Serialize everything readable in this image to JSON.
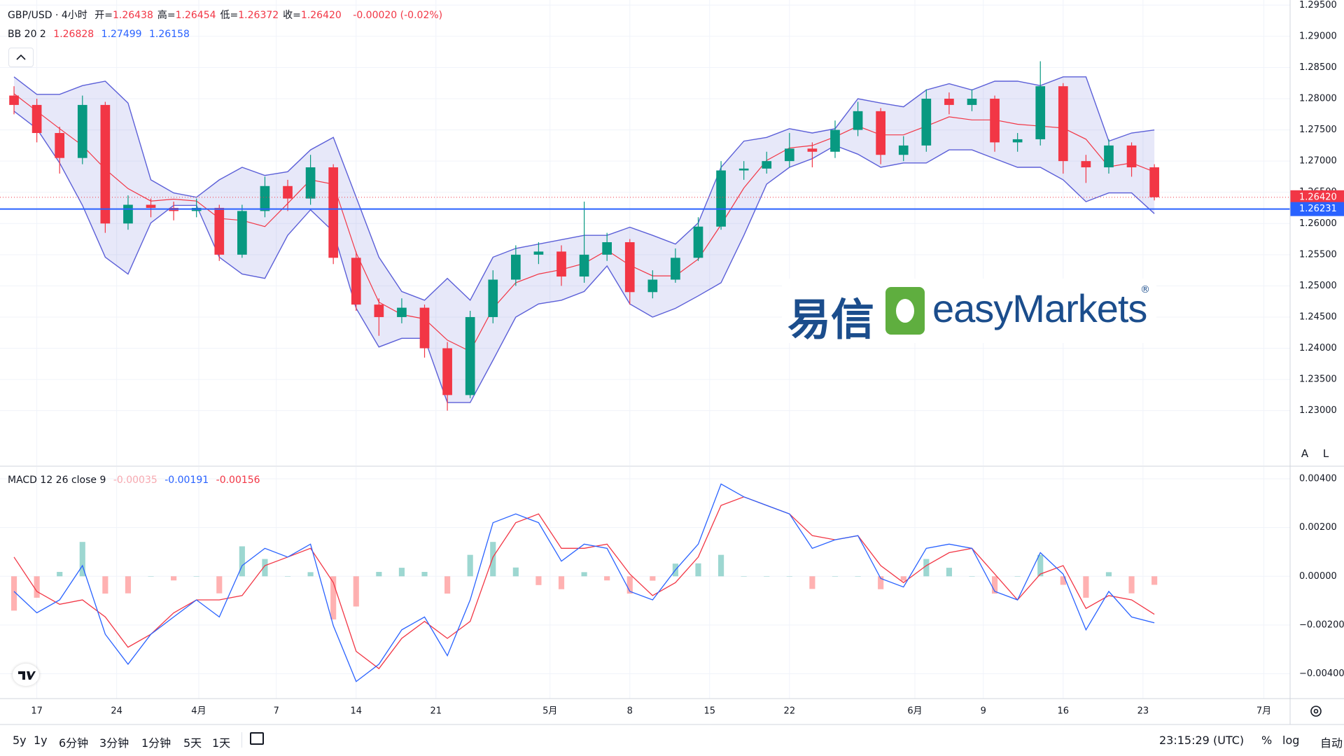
{
  "header": {
    "symbol": "GBP/USD · 4小时",
    "ohlc": [
      {
        "k": "开=",
        "v": "1.26438"
      },
      {
        "k": "高=",
        "v": "1.26454"
      },
      {
        "k": "低=",
        "v": "1.26372"
      },
      {
        "k": "收=",
        "v": "1.26420"
      }
    ],
    "change": "-0.00020 (-0.02%)",
    "bb_label": "BB 20 2",
    "bb_values": [
      "1.26828",
      "1.27499",
      "1.26158"
    ],
    "macd_label": "MACD 12 26 close 9",
    "macd_values": [
      "-0.00035",
      "-0.00191",
      "-0.00156"
    ]
  },
  "watermark": {
    "cn": "易信",
    "en": "easyMarkets",
    "reg": "®"
  },
  "scale_buttons": [
    "A",
    "L"
  ],
  "toolbar": {
    "ranges": [
      "5y",
      "1y",
      "6分钟",
      "3分钟",
      "1分钟",
      "5天",
      "1天"
    ],
    "clock": "23:15:29 (UTC)",
    "options": [
      "%",
      "log",
      "自动"
    ]
  },
  "chart_data": [
    {
      "type": "candlestick",
      "xlim": [
        -3.23,
        109.9
      ],
      "ylim": [
        1.22121,
        1.29582
      ],
      "xticks": [
        {
          "value": 0,
          "label": "17"
        },
        {
          "value": 7,
          "label": "24"
        },
        {
          "value": 14.2,
          "label": "4月"
        },
        {
          "value": 21,
          "label": "7"
        },
        {
          "value": 28,
          "label": "14"
        },
        {
          "value": 35,
          "label": "21"
        },
        {
          "value": 45,
          "label": "5月"
        },
        {
          "value": 52,
          "label": "8"
        },
        {
          "value": 59,
          "label": "15"
        },
        {
          "value": 66,
          "label": "22"
        },
        {
          "value": 77,
          "label": "6月"
        },
        {
          "value": 83,
          "label": "9"
        },
        {
          "value": 90,
          "label": "16"
        },
        {
          "value": 97,
          "label": "23"
        },
        {
          "value": 107.6,
          "label": "7月"
        }
      ],
      "yticks": [
        {
          "value": 1.23,
          "label": "1.23000"
        },
        {
          "value": 1.235,
          "label": "1.23500"
        },
        {
          "value": 1.24,
          "label": "1.24000"
        },
        {
          "value": 1.245,
          "label": "1.24500"
        },
        {
          "value": 1.25,
          "label": "1.25000"
        },
        {
          "value": 1.255,
          "label": "1.25500"
        },
        {
          "value": 1.26,
          "label": "1.26000"
        },
        {
          "value": 1.265,
          "label": "1.26500"
        },
        {
          "value": 1.27,
          "label": "1.27000"
        },
        {
          "value": 1.275,
          "label": "1.27500"
        },
        {
          "value": 1.28,
          "label": "1.28000"
        },
        {
          "value": 1.285,
          "label": "1.28500"
        },
        {
          "value": 1.29,
          "label": "1.29000"
        },
        {
          "value": 1.295,
          "label": "1.29500"
        }
      ],
      "grid": true,
      "up_color": "#089981",
      "down_color": "#f23645",
      "x": [
        -2,
        0,
        2,
        4,
        6,
        8,
        10,
        12,
        14,
        16,
        18,
        20,
        22,
        24,
        26,
        28,
        30,
        32,
        34,
        36,
        38,
        40,
        42,
        44,
        46,
        48,
        50,
        52,
        54,
        56,
        58,
        60,
        62,
        64,
        66,
        68,
        70,
        72,
        74,
        76,
        78,
        80,
        82,
        84,
        86,
        88,
        90,
        92,
        94,
        96,
        98
      ],
      "open": [
        1.2805,
        1.279,
        1.2745,
        1.2705,
        1.279,
        1.26,
        1.263,
        1.2625,
        1.262,
        1.2625,
        1.255,
        1.262,
        1.266,
        1.264,
        1.269,
        1.2545,
        1.247,
        1.245,
        1.2465,
        1.24,
        1.2325,
        1.245,
        1.251,
        1.255,
        1.2555,
        1.2515,
        1.255,
        1.257,
        1.249,
        1.251,
        1.2545,
        1.2595,
        1.2685,
        1.2688,
        1.27,
        1.272,
        1.2715,
        1.275,
        1.278,
        1.271,
        1.2725,
        1.28,
        1.279,
        1.28,
        1.273,
        1.2735,
        1.282,
        1.27,
        1.269,
        1.2725,
        1.269
      ],
      "high": [
        1.282,
        1.28,
        1.2755,
        1.2805,
        1.2795,
        1.2645,
        1.264,
        1.2635,
        1.264,
        1.263,
        1.263,
        1.2675,
        1.267,
        1.271,
        1.2695,
        1.2555,
        1.248,
        1.248,
        1.247,
        1.241,
        1.246,
        1.2525,
        1.2565,
        1.257,
        1.2565,
        1.2635,
        1.2585,
        1.2575,
        1.2525,
        1.256,
        1.261,
        1.27,
        1.27,
        1.2715,
        1.2745,
        1.273,
        1.2765,
        1.2795,
        1.2785,
        1.274,
        1.2815,
        1.281,
        1.2815,
        1.2805,
        1.2745,
        1.286,
        1.2825,
        1.271,
        1.2735,
        1.273,
        1.2695
      ],
      "low": [
        1.2775,
        1.273,
        1.268,
        1.2695,
        1.2585,
        1.259,
        1.261,
        1.2605,
        1.261,
        1.254,
        1.2545,
        1.261,
        1.262,
        1.263,
        1.2535,
        1.246,
        1.242,
        1.244,
        1.2385,
        1.23,
        1.232,
        1.244,
        1.25,
        1.2535,
        1.25,
        1.2505,
        1.254,
        1.247,
        1.248,
        1.2505,
        1.254,
        1.259,
        1.267,
        1.268,
        1.269,
        1.269,
        1.2705,
        1.274,
        1.2695,
        1.27,
        1.2715,
        1.2775,
        1.278,
        1.2715,
        1.2715,
        1.2725,
        1.268,
        1.2665,
        1.268,
        1.2675,
        1.2637
      ],
      "close": [
        1.279,
        1.2745,
        1.2705,
        1.279,
        1.26,
        1.263,
        1.2625,
        1.262,
        1.2625,
        1.255,
        1.262,
        1.266,
        1.264,
        1.269,
        1.2545,
        1.247,
        1.245,
        1.2465,
        1.24,
        1.2325,
        1.245,
        1.251,
        1.255,
        1.2555,
        1.2515,
        1.255,
        1.257,
        1.249,
        1.251,
        1.2545,
        1.2595,
        1.2685,
        1.2688,
        1.27,
        1.272,
        1.2715,
        1.275,
        1.278,
        1.271,
        1.2725,
        1.28,
        1.279,
        1.28,
        1.273,
        1.2735,
        1.282,
        1.27,
        1.269,
        1.2725,
        1.269,
        1.2642
      ],
      "bands": {
        "basis_color": "#f23645",
        "band_color": "#5b5fd8",
        "fill": "rgba(103,110,220,0.16)",
        "basis": [
          1.2808,
          1.278,
          1.2752,
          1.2725,
          1.2687,
          1.2656,
          1.2636,
          1.2639,
          1.2636,
          1.2608,
          1.2605,
          1.2595,
          1.2632,
          1.267,
          1.2663,
          1.2553,
          1.2474,
          1.2454,
          1.2447,
          1.2413,
          1.2395,
          1.2464,
          1.2505,
          1.2519,
          1.2526,
          1.2536,
          1.2557,
          1.2533,
          1.2516,
          1.2516,
          1.2543,
          1.2598,
          1.2657,
          1.2701,
          1.2721,
          1.2725,
          1.2739,
          1.2756,
          1.2742,
          1.2742,
          1.2756,
          1.2771,
          1.2766,
          1.2766,
          1.2759,
          1.2756,
          1.2753,
          1.2735,
          1.2691,
          1.2697,
          1.26828
        ],
        "upper": [
          1.2835,
          1.2807,
          1.2807,
          1.2821,
          1.2828,
          1.2793,
          1.267,
          1.2649,
          1.2642,
          1.267,
          1.269,
          1.2677,
          1.2683,
          1.2718,
          1.2738,
          1.2642,
          1.2546,
          1.2491,
          1.2477,
          1.2512,
          1.2477,
          1.2546,
          1.256,
          1.2567,
          1.2574,
          1.2581,
          1.2581,
          1.2594,
          1.2581,
          1.2567,
          1.2601,
          1.269,
          1.2732,
          1.2738,
          1.2752,
          1.2745,
          1.2752,
          1.28,
          1.2793,
          1.2787,
          1.2814,
          1.2824,
          1.2814,
          1.2828,
          1.2828,
          1.2821,
          1.2835,
          1.2835,
          1.2732,
          1.2745,
          1.27499
        ],
        "lower": [
          1.278,
          1.2752,
          1.2697,
          1.2629,
          1.2546,
          1.2519,
          1.2601,
          1.2629,
          1.2629,
          1.2546,
          1.2519,
          1.2512,
          1.2581,
          1.2622,
          1.2587,
          1.2464,
          1.2402,
          1.2416,
          1.2416,
          1.2313,
          1.2313,
          1.2381,
          1.245,
          1.2471,
          1.2477,
          1.2491,
          1.2532,
          1.2471,
          1.245,
          1.2464,
          1.2484,
          1.2505,
          1.2581,
          1.2663,
          1.269,
          1.2704,
          1.2725,
          1.2711,
          1.269,
          1.2697,
          1.2697,
          1.2718,
          1.2718,
          1.2704,
          1.269,
          1.269,
          1.267,
          1.2635,
          1.2649,
          1.2649,
          1.26158
        ]
      },
      "last_price": {
        "value": 1.2642,
        "label": "1.26420",
        "color": "#f23645"
      },
      "hline": {
        "value": 1.26231,
        "color": "#2962ff"
      }
    },
    {
      "type": "macd",
      "xlim": [
        -3.23,
        109.9
      ],
      "ylim": [
        -0.00502,
        0.00449
      ],
      "yticks": [
        {
          "value": 0.004,
          "label": "0.00400"
        },
        {
          "value": 0.002,
          "label": "0.00200"
        },
        {
          "value": 0,
          "label": "0.00000"
        },
        {
          "value": -0.002,
          "label": "−0.00200"
        },
        {
          "value": -0.004,
          "label": "−0.00400"
        }
      ],
      "grid": true,
      "macd_color": "#2962ff",
      "signal_color": "#f23645",
      "hist_up_color": "#26a69a",
      "hist_down_color": "#ff5252",
      "x": [
        -2,
        0,
        2,
        4,
        6,
        8,
        10,
        12,
        14,
        16,
        18,
        20,
        22,
        24,
        26,
        28,
        30,
        32,
        34,
        36,
        38,
        40,
        42,
        44,
        46,
        48,
        50,
        52,
        54,
        56,
        58,
        60,
        62,
        64,
        66,
        68,
        70,
        72,
        74,
        76,
        78,
        80,
        82,
        84,
        86,
        88,
        90,
        92,
        94,
        96,
        98
      ],
      "macd": [
        -0.00062,
        -0.0015,
        -0.00097,
        0.00044,
        -0.00238,
        -0.00361,
        -0.00238,
        -0.00167,
        -0.00097,
        -0.00167,
        0.00044,
        0.00115,
        0.00079,
        0.00132,
        -0.00203,
        -0.00432,
        -0.00361,
        -0.0022,
        -0.00167,
        -0.00326,
        -0.00097,
        0.0022,
        0.00256,
        0.0022,
        0.00062,
        0.00132,
        0.00115,
        -0.00062,
        -0.00097,
        0.00026,
        0.00132,
        0.00379,
        0.00326,
        0.00291,
        0.00256,
        0.00115,
        0.0015,
        0.00167,
        -9e-05,
        -0.00044,
        0.00115,
        0.00132,
        0.00115,
        -0.00062,
        -0.00097,
        0.00097,
        9e-05,
        -0.0022,
        -0.00062,
        -0.00167,
        -0.00191
      ],
      "signal": [
        0.00079,
        -0.00062,
        -0.00115,
        -0.00097,
        -0.00167,
        -0.00291,
        -0.00238,
        -0.0015,
        -0.00097,
        -0.00097,
        -0.00079,
        0.00044,
        0.00079,
        0.00115,
        -0.00026,
        -0.00308,
        -0.00379,
        -0.00255,
        -0.00185,
        -0.00255,
        -0.00185,
        0.00079,
        0.0022,
        0.00256,
        0.00115,
        0.00115,
        0.00132,
        9e-05,
        -0.00079,
        -0.00026,
        0.00079,
        0.00291,
        0.00326,
        0.00291,
        0.00256,
        0.00167,
        0.0015,
        0.00167,
        0.00044,
        -0.00026,
        0.00044,
        0.00097,
        0.00115,
        9e-05,
        -0.00097,
        9e-05,
        0.00044,
        -0.00132,
        -0.00079,
        -0.00097,
        -0.00156
      ],
      "hist": [
        -0.00141,
        -0.00088,
        0.00018,
        0.00141,
        -0.00071,
        -0.0007,
        0,
        -0.00017,
        0,
        -0.0007,
        0.00123,
        0.00071,
        0,
        0.00017,
        -0.00177,
        -0.00124,
        0.00018,
        0.00035,
        0.00018,
        -0.00071,
        0.00088,
        0.00141,
        0.00036,
        -0.00036,
        -0.00053,
        0.00017,
        -0.00017,
        -0.00071,
        -0.00018,
        0.00052,
        0.00053,
        0.00088,
        0,
        0,
        0,
        -0.00052,
        0,
        0,
        -0.00053,
        -0.00018,
        0.00071,
        0.00035,
        0,
        -0.00071,
        0,
        0.00088,
        -0.00035,
        -0.00088,
        0.00017,
        -0.0007,
        -0.00035
      ]
    }
  ]
}
